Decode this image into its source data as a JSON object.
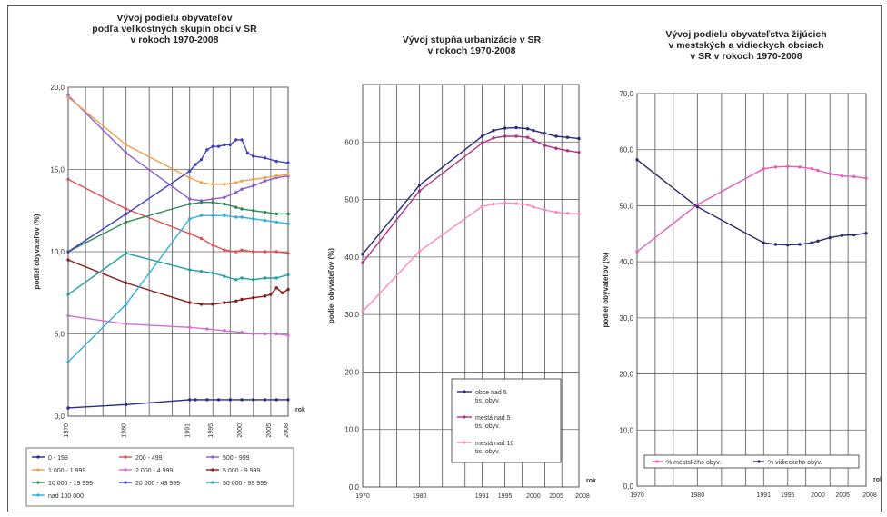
{
  "chart_data": [
    {
      "type": "line",
      "title": [
        "Vývoj podielu obyvateľov",
        "podľa veľkostných skupín obcí v SR",
        "v rokoch 1970-2008"
      ],
      "ylabel": "podiel obyvateľov (%)",
      "xlabel": "rok",
      "ylim": [
        0,
        20
      ],
      "yticks": [
        "0,0",
        "5,0",
        "10,0",
        "15,0",
        "20,0"
      ],
      "x_ticks": [
        "1970",
        "1980",
        "1991",
        "1995",
        "2000",
        "2005",
        "2008"
      ],
      "series": [
        {
          "name": "0 - 199",
          "color": "#2a2a8c",
          "x": [
            1970,
            1980,
            1991,
            1992,
            1994,
            1996,
            1998,
            2000,
            2002,
            2004,
            2006,
            2008
          ],
          "values": [
            0.5,
            0.7,
            1.0,
            1.0,
            1.0,
            1.0,
            1.0,
            1.0,
            1.0,
            1.0,
            1.0,
            1.0
          ]
        },
        {
          "name": "200 - 499",
          "color": "#e05050",
          "x": [
            1970,
            1980,
            1991,
            1993,
            1995,
            1997,
            1999,
            2000,
            2002,
            2004,
            2006,
            2008
          ],
          "values": [
            14.4,
            12.6,
            11.1,
            10.8,
            10.4,
            10.1,
            10.0,
            10.1,
            10.0,
            10.0,
            10.0,
            9.9
          ]
        },
        {
          "name": "500 - 999",
          "color": "#8c5ad2",
          "x": [
            1970,
            1980,
            1991,
            1993,
            1995,
            1997,
            1999,
            2000,
            2002,
            2004,
            2006,
            2008
          ],
          "values": [
            19.5,
            16.0,
            13.2,
            13.1,
            13.2,
            13.3,
            13.6,
            13.8,
            14.0,
            14.3,
            14.5,
            14.6
          ]
        },
        {
          "name": "1 000 - 1 999",
          "color": "#f0a050",
          "x": [
            1970,
            1980,
            1991,
            1993,
            1995,
            1997,
            1999,
            2000,
            2002,
            2004,
            2006,
            2008
          ],
          "values": [
            19.4,
            16.5,
            14.5,
            14.2,
            14.1,
            14.1,
            14.2,
            14.3,
            14.4,
            14.5,
            14.6,
            14.7
          ]
        },
        {
          "name": "2 000 - 4 999",
          "color": "#d070d0",
          "x": [
            1970,
            1980,
            1991,
            1994,
            1997,
            2000,
            2002,
            2004,
            2006,
            2008
          ],
          "values": [
            6.1,
            5.6,
            5.4,
            5.3,
            5.2,
            5.1,
            5.0,
            5.0,
            5.0,
            4.9
          ]
        },
        {
          "name": "5 000 - 9 999",
          "color": "#8b1a1a",
          "x": [
            1970,
            1980,
            1991,
            1993,
            1995,
            1997,
            1999,
            2000,
            2002,
            2004,
            2005,
            2006,
            2007,
            2008
          ],
          "values": [
            9.5,
            8.1,
            6.9,
            6.8,
            6.8,
            6.9,
            7.0,
            7.1,
            7.2,
            7.3,
            7.4,
            7.8,
            7.5,
            7.7
          ]
        },
        {
          "name": "10 000 - 19 999",
          "color": "#2e8b57",
          "x": [
            1970,
            1980,
            1991,
            1993,
            1995,
            1997,
            1999,
            2000,
            2002,
            2004,
            2006,
            2008
          ],
          "values": [
            10.0,
            11.8,
            12.9,
            13.0,
            13.0,
            12.9,
            12.7,
            12.6,
            12.5,
            12.4,
            12.3,
            12.3
          ]
        },
        {
          "name": "20 000 - 49 999",
          "color": "#4040c0",
          "x": [
            1970,
            1980,
            1991,
            1992,
            1993,
            1994,
            1995,
            1996,
            1997,
            1998,
            1999,
            2000,
            2001,
            2002,
            2004,
            2006,
            2008
          ],
          "values": [
            10.0,
            12.3,
            14.9,
            15.3,
            15.6,
            16.2,
            16.4,
            16.4,
            16.5,
            16.5,
            16.8,
            16.8,
            16.0,
            15.8,
            15.7,
            15.5,
            15.4
          ]
        },
        {
          "name": "50 000 - 99 999",
          "color": "#20a0a0",
          "x": [
            1970,
            1980,
            1991,
            1993,
            1995,
            1997,
            1999,
            2000,
            2002,
            2004,
            2006,
            2008
          ],
          "values": [
            7.4,
            9.9,
            8.9,
            8.8,
            8.7,
            8.5,
            8.3,
            8.4,
            8.3,
            8.4,
            8.4,
            8.6
          ]
        },
        {
          "name": "nad 100 000",
          "color": "#30b0e0",
          "x": [
            1970,
            1980,
            1991,
            1993,
            1995,
            1997,
            1999,
            2000,
            2002,
            2004,
            2006,
            2008
          ],
          "values": [
            3.3,
            6.8,
            12.0,
            12.2,
            12.2,
            12.2,
            12.1,
            12.1,
            12.0,
            11.9,
            11.8,
            11.7
          ]
        }
      ]
    },
    {
      "type": "line",
      "title": [
        "Vývoj stupňa urbanizácie v SR",
        "v rokoch 1970-2008"
      ],
      "ylabel": "podiel obyvateľov (%)",
      "xlabel": "rok",
      "ylim": [
        0,
        70
      ],
      "yticks": [
        "0,0",
        "10,0",
        "20,0",
        "30,0",
        "40,0",
        "50,0",
        "60,0"
      ],
      "x_ticks": [
        "1970",
        "1980",
        "1991",
        "1995",
        "2000",
        "2005",
        "2008"
      ],
      "series": [
        {
          "name": "obce nad 5 tis. obyv.",
          "color": "#2a2a7a",
          "x": [
            1970,
            1980,
            1991,
            1993,
            1995,
            1997,
            1999,
            2000,
            2002,
            2004,
            2006,
            2008
          ],
          "values": [
            40.5,
            52.5,
            61.0,
            62.0,
            62.4,
            62.5,
            62.3,
            62.0,
            61.5,
            61.0,
            60.8,
            60.6
          ]
        },
        {
          "name": "mestá nad 5 tis. obyv.",
          "color": "#b03080",
          "x": [
            1970,
            1980,
            1991,
            1993,
            1995,
            1997,
            1999,
            2000,
            2002,
            2004,
            2006,
            2008
          ],
          "values": [
            39.0,
            51.5,
            59.8,
            60.7,
            61.0,
            61.0,
            60.8,
            60.3,
            59.4,
            58.9,
            58.5,
            58.2
          ]
        },
        {
          "name": "mestá nad 10 tis. obyv.",
          "color": "#ff88c0",
          "x": [
            1970,
            1980,
            1991,
            1993,
            1995,
            1997,
            1999,
            2000,
            2002,
            2004,
            2006,
            2008
          ],
          "values": [
            30.5,
            41.0,
            48.8,
            49.2,
            49.4,
            49.3,
            49.1,
            48.7,
            48.2,
            47.8,
            47.6,
            47.5
          ]
        }
      ]
    },
    {
      "type": "line",
      "title": [
        "Vývoj podielu obyvateľstva žijúcich",
        "v mestských a vidieckych obciach",
        "v SR v rokoch 1970-2008"
      ],
      "ylabel": "podiel obyvateľov (%)",
      "xlabel": "rok",
      "ylim": [
        0,
        70
      ],
      "yticks": [
        "0,0",
        "10,0",
        "20,0",
        "30,0",
        "40,0",
        "50,0",
        "60,0",
        "70,0"
      ],
      "x_ticks": [
        "1970",
        "1980",
        "1991",
        "1995",
        "2000",
        "2005",
        "2008"
      ],
      "series": [
        {
          "name": "% mestského obyv.",
          "color": "#e060c0",
          "x": [
            1970,
            1980,
            1991,
            1993,
            1995,
            1997,
            1999,
            2000,
            2002,
            2004,
            2006,
            2008
          ],
          "values": [
            41.8,
            50.2,
            56.6,
            56.9,
            57.0,
            56.9,
            56.6,
            56.3,
            55.7,
            55.3,
            55.2,
            54.9
          ]
        },
        {
          "name": "% vidieckeho obyv.",
          "color": "#2a2a6a",
          "x": [
            1970,
            1980,
            1991,
            1993,
            1995,
            1997,
            1999,
            2000,
            2002,
            2004,
            2006,
            2008
          ],
          "values": [
            58.2,
            49.8,
            43.4,
            43.1,
            43.0,
            43.1,
            43.4,
            43.7,
            44.3,
            44.7,
            44.8,
            45.1
          ]
        }
      ]
    }
  ]
}
